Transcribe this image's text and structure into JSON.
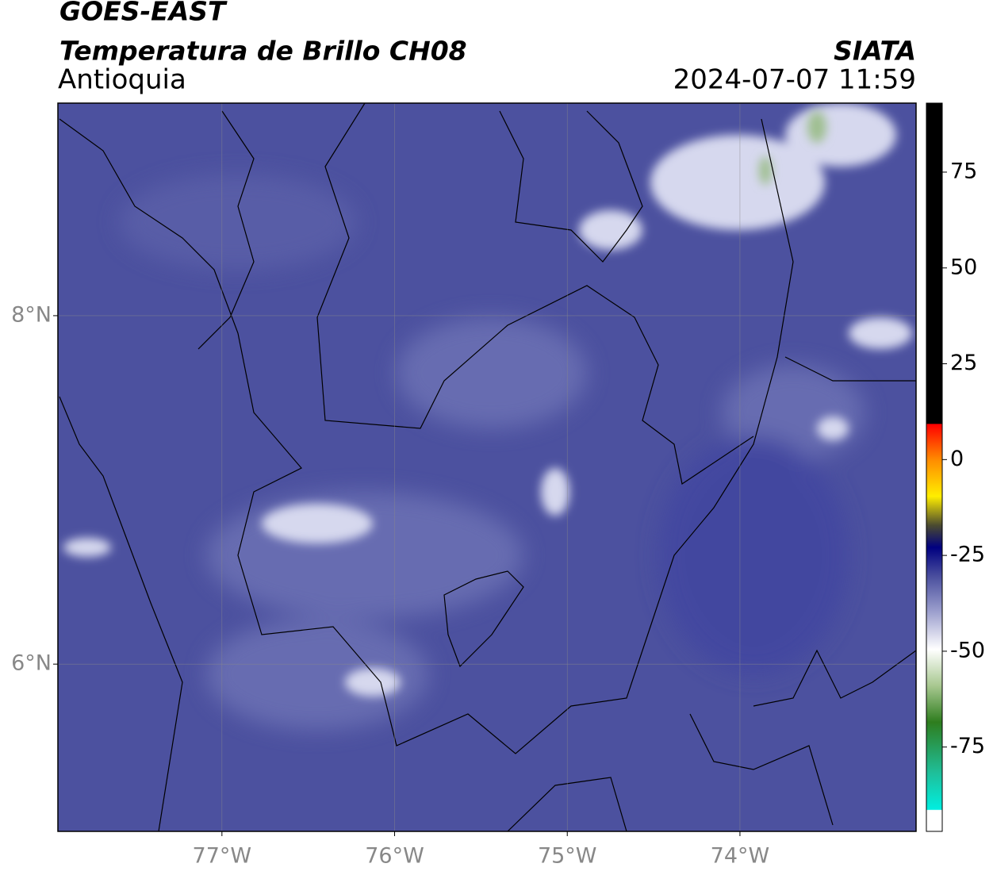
{
  "header": {
    "title": "GOES-EAST",
    "subtitle": "Temperatura de Brillo CH08",
    "region": "Antioquia",
    "source": "SIATA",
    "datetime": "2024-07-07 11:59"
  },
  "map": {
    "xlim": [
      -77.95,
      -72.98
    ],
    "ylim": [
      5.04,
      9.22
    ],
    "xticks": [
      {
        "value": -77,
        "label": "77°W"
      },
      {
        "value": -76,
        "label": "76°W"
      },
      {
        "value": -75,
        "label": "75°W"
      },
      {
        "value": -74,
        "label": "74°W"
      }
    ],
    "yticks": [
      {
        "value": 8,
        "label": "8°N"
      },
      {
        "value": 6,
        "label": "6°N"
      }
    ],
    "grid": true
  },
  "colorbar": {
    "range": [
      -97,
      93
    ],
    "ticks": [
      75,
      50,
      25,
      0,
      -25,
      -50,
      -75
    ]
  }
}
